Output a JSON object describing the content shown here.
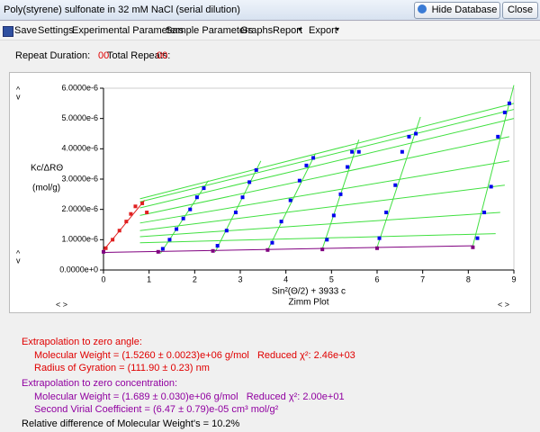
{
  "window": {
    "title": "Poly(styrene) sulfonate in 32 mM NaCl (serial dilution)",
    "buttons": [
      "Hide Database",
      "Close"
    ]
  },
  "menu": [
    "Save",
    "Settings",
    "Experimental Parameters",
    "Sample Parameters",
    "Graphs",
    "Report",
    "Export"
  ],
  "info": {
    "repeat_duration_label": "Repeat Duration:",
    "repeat_duration": "00",
    "total_repeats_label": "Total Repeats:",
    "total_repeats": "00"
  },
  "chart_data": {
    "type": "scatter",
    "title": "Zimm Plot",
    "x_label": "Sin²(Θ/2) + 3933 c",
    "y_label": [
      "Kc/ΔRΘ",
      "(mol/g)"
    ],
    "xlim": [
      0,
      9
    ],
    "xticks": [
      0,
      1,
      2,
      3,
      4,
      5,
      6,
      7,
      8,
      9
    ],
    "ylim": [
      0,
      6e-06
    ],
    "yticks": [
      {
        "value": 0,
        "label": "0.0000e+0"
      },
      {
        "value": 1e-06,
        "label": "1.0000e-6"
      },
      {
        "value": 2e-06,
        "label": "2.0000e-6"
      },
      {
        "value": 3e-06,
        "label": "3.0000e-6"
      },
      {
        "value": 4e-06,
        "label": "4.0000e-6"
      },
      {
        "value": 5e-06,
        "label": "5.0000e-6"
      },
      {
        "value": 6e-06,
        "label": "6.0000e-6"
      }
    ],
    "fit_lines": [
      {
        "color": "#40e040",
        "x": [
          1.25,
          2.3
        ],
        "values": [
          5.5e-07,
          2.95e-06
        ]
      },
      {
        "color": "#40e040",
        "x": [
          2.45,
          3.45
        ],
        "values": [
          6e-07,
          3.6e-06
        ]
      },
      {
        "color": "#40e040",
        "x": [
          3.6,
          4.65
        ],
        "values": [
          6.5e-07,
          3.85e-06
        ]
      },
      {
        "color": "#40e040",
        "x": [
          4.8,
          5.6
        ],
        "values": [
          7e-07,
          4.3e-06
        ]
      },
      {
        "color": "#40e040",
        "x": [
          6.0,
          6.95
        ],
        "values": [
          7.5e-07,
          5.05e-06
        ]
      },
      {
        "color": "#40e040",
        "x": [
          8.1,
          9.0
        ],
        "values": [
          8e-07,
          6.1e-06
        ]
      },
      {
        "color": "#40e040",
        "x": [
          0.8,
          8.6
        ],
        "values": [
          9e-07,
          1.2e-06
        ]
      },
      {
        "color": "#40e040",
        "x": [
          0.8,
          8.7
        ],
        "values": [
          1.1e-06,
          1.9e-06
        ]
      },
      {
        "color": "#40e040",
        "x": [
          0.8,
          8.8
        ],
        "values": [
          1.3e-06,
          2.8e-06
        ]
      },
      {
        "color": "#40e040",
        "x": [
          0.8,
          8.9
        ],
        "values": [
          1.55e-06,
          3.6e-06
        ]
      },
      {
        "color": "#40e040",
        "x": [
          0.8,
          8.9
        ],
        "values": [
          1.8e-06,
          4.4e-06
        ]
      },
      {
        "color": "#40e040",
        "x": [
          0.8,
          9.0
        ],
        "values": [
          2.05e-06,
          5e-06
        ]
      },
      {
        "color": "#40e040",
        "x": [
          0.8,
          9.0
        ],
        "values": [
          2.25e-06,
          5.3e-06
        ]
      },
      {
        "color": "#40e040",
        "x": [
          0.8,
          9.0
        ],
        "values": [
          2.35e-06,
          5.5e-06
        ]
      },
      {
        "color": "#e02020",
        "x": [
          0,
          0.9
        ],
        "values": [
          6.5e-07,
          2.3e-06
        ]
      },
      {
        "color": "#800080",
        "x": [
          0,
          8.1
        ],
        "values": [
          5.8e-07,
          8e-07
        ]
      }
    ],
    "series": [
      {
        "color": "#0000ee",
        "x": [
          1.3,
          1.45,
          1.6,
          1.75,
          1.9,
          2.05,
          2.2,
          2.5,
          2.7,
          2.9,
          3.05,
          3.2,
          3.35,
          3.7,
          3.9,
          4.1,
          4.3,
          4.45,
          4.6,
          4.9,
          5.05,
          5.2,
          5.35,
          5.45,
          5.6,
          6.05,
          6.2,
          6.4,
          6.55,
          6.7,
          6.85,
          8.2,
          8.35,
          8.5,
          8.65,
          8.8,
          8.9
        ],
        "values": [
          7e-07,
          1e-06,
          1.35e-06,
          1.7e-06,
          2e-06,
          2.4e-06,
          2.7e-06,
          8e-07,
          1.3e-06,
          1.9e-06,
          2.4e-06,
          2.9e-06,
          3.3e-06,
          9e-07,
          1.6e-06,
          2.3e-06,
          2.95e-06,
          3.45e-06,
          3.7e-06,
          1e-06,
          1.8e-06,
          2.5e-06,
          3.4e-06,
          3.9e-06,
          3.9e-06,
          1.05e-06,
          1.9e-06,
          2.8e-06,
          3.9e-06,
          4.4e-06,
          4.5e-06,
          1.05e-06,
          1.9e-06,
          2.75e-06,
          4.4e-06,
          5.2e-06,
          5.5e-06
        ]
      },
      {
        "color": "#e02020",
        "x": [
          0.05,
          0.2,
          0.35,
          0.5,
          0.6,
          0.7,
          0.85,
          0.95
        ],
        "values": [
          7.2e-07,
          1e-06,
          1.3e-06,
          1.6e-06,
          1.85e-06,
          2.1e-06,
          2.2e-06,
          1.9e-06
        ]
      },
      {
        "color": "#800080",
        "x": [
          0,
          1.2,
          2.4,
          3.6,
          4.8,
          6.0,
          8.1
        ],
        "values": [
          6e-07,
          6e-07,
          6.3e-07,
          6.6e-07,
          6.8e-07,
          7.2e-07,
          7.5e-07
        ]
      }
    ]
  },
  "results": {
    "zero_angle": {
      "heading": "Extrapolation to zero angle:",
      "lines": [
        "Molecular Weight = (1.5260 ± 0.0023)e+06 g/mol   Reduced χ²: 2.46e+03",
        "Radius of Gyration = (111.90 ± 0.23) nm"
      ]
    },
    "zero_concentration": {
      "heading": "Extrapolation to zero concentration:",
      "lines": [
        "Molecular Weight = (1.689 ± 0.030)e+06 g/mol   Reduced χ²: 2.00e+01",
        "Second Virial Coefficient = (6.47 ± 0.79)e-05 cm³ mol/g²"
      ]
    },
    "relative_difference": "Relative difference of Molecular Weight's = 10.2%"
  }
}
